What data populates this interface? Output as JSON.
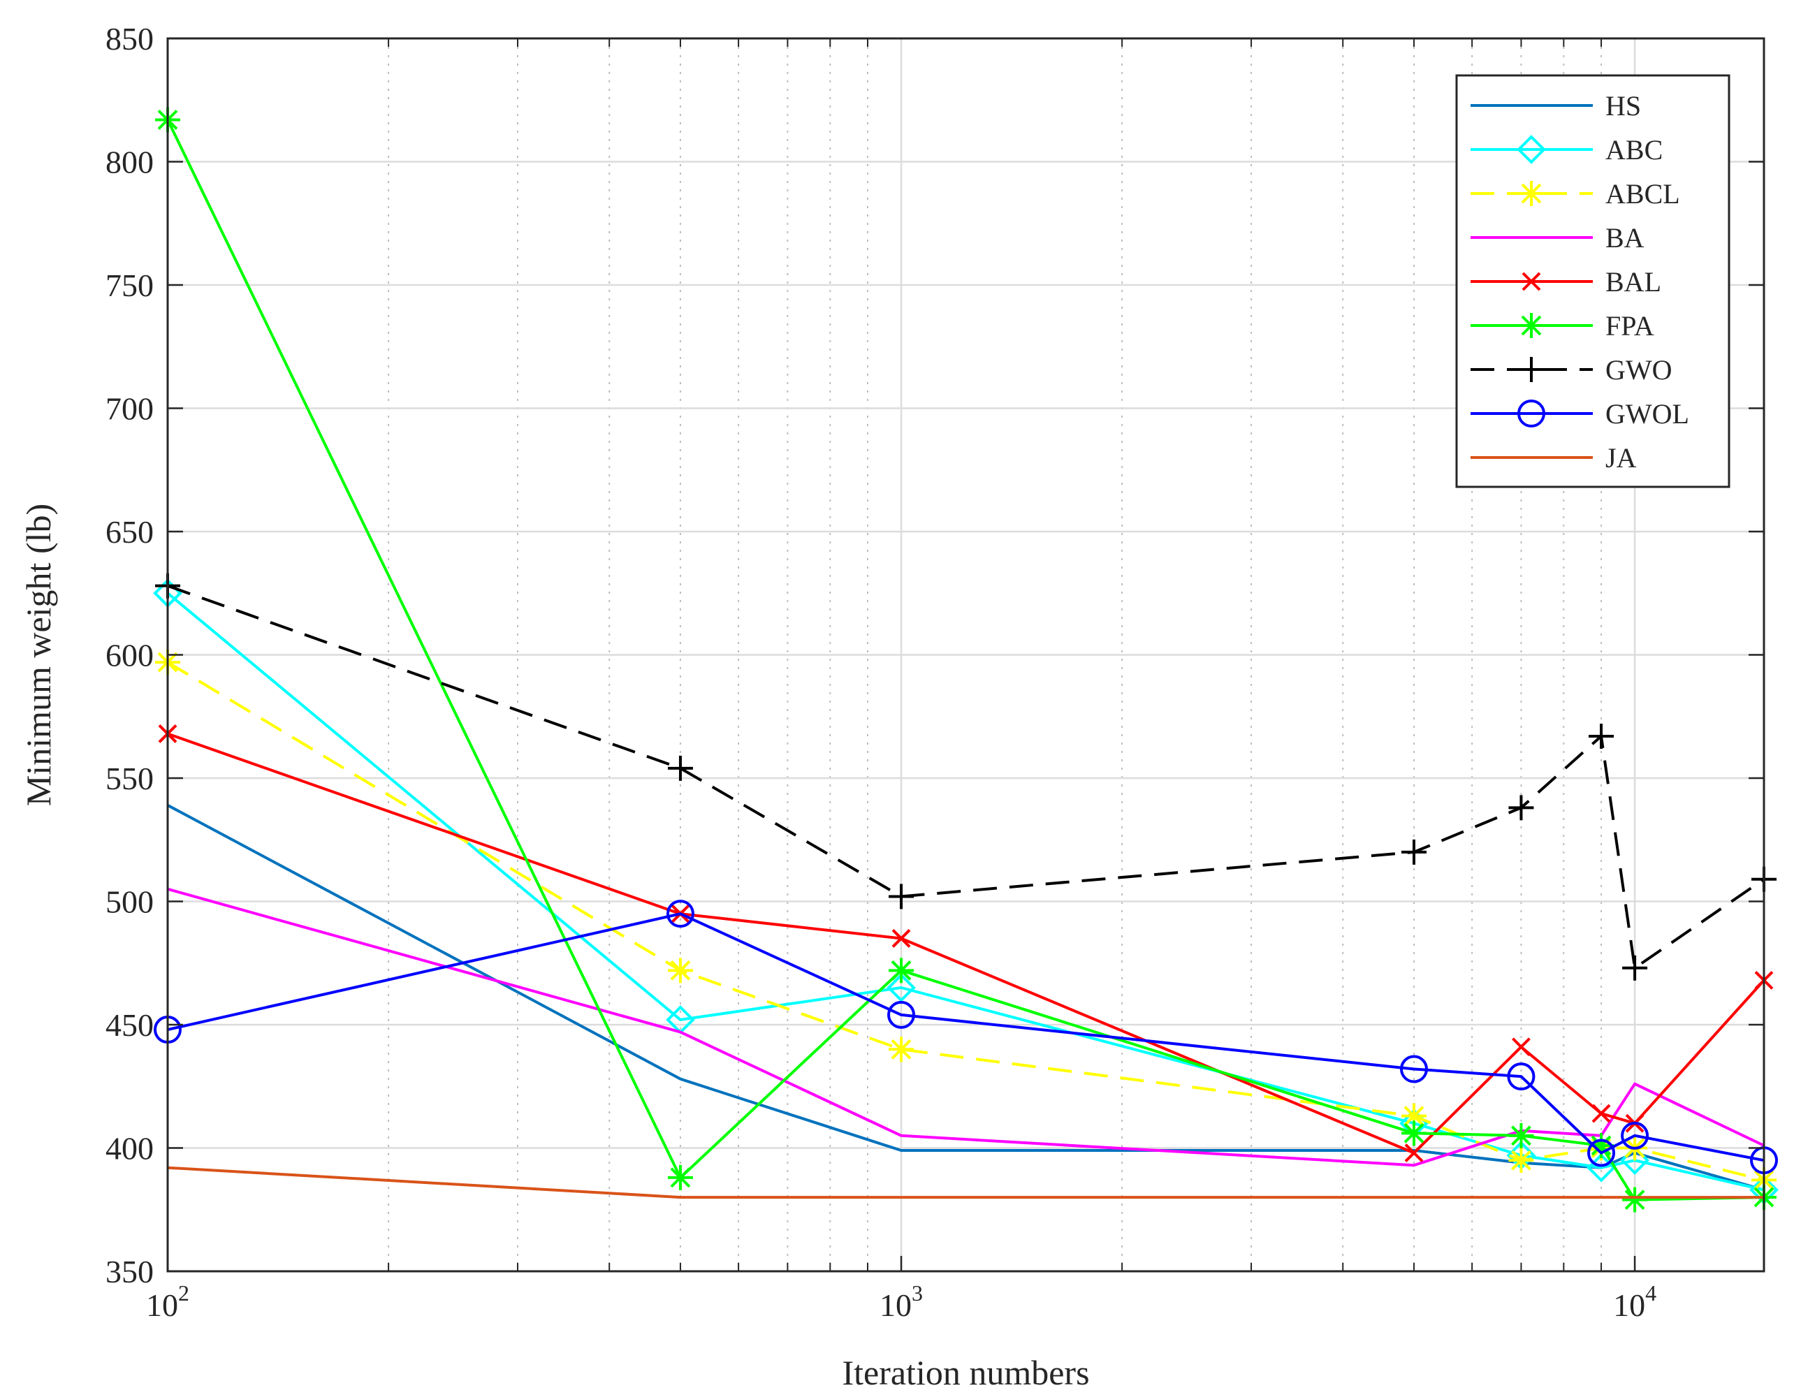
{
  "chart_data": {
    "type": "line",
    "title": "",
    "xlabel": "Iteration numbers",
    "ylabel": "Minimum weight (lb)",
    "x_scale": "log",
    "xlim": [
      100,
      15000
    ],
    "ylim": [
      350,
      850
    ],
    "x": [
      100,
      500,
      1000,
      5000,
      7000,
      9000,
      10000,
      15000
    ],
    "x_tick_labels": [
      {
        "base": "10",
        "exp": "2",
        "value": 100
      },
      {
        "base": "10",
        "exp": "3",
        "value": 1000
      },
      {
        "base": "10",
        "exp": "4",
        "value": 10000
      }
    ],
    "y_ticks": [
      350,
      400,
      450,
      500,
      550,
      600,
      650,
      700,
      750,
      800,
      850
    ],
    "y_tick_labels": [
      "350",
      "400",
      "450",
      "500",
      "550",
      "600",
      "650",
      "700",
      "750",
      "800",
      "850"
    ],
    "grid": true,
    "minor_grid": true,
    "legend_position": "top-right",
    "series": [
      {
        "name": "HS",
        "color": "#0072BD",
        "dash": "solid",
        "marker": "none",
        "values": [
          539,
          428,
          399,
          399,
          394,
          392,
          398,
          383
        ]
      },
      {
        "name": "ABC",
        "color": "#00FFFF",
        "dash": "solid",
        "marker": "diamond",
        "values": [
          625,
          452,
          465,
          410,
          397,
          392,
          395,
          383
        ]
      },
      {
        "name": "ABCL",
        "color": "#FFFF00",
        "dash": "dashed",
        "marker": "asterisk",
        "values": [
          597,
          472,
          440,
          413,
          395,
          400,
          400,
          387
        ]
      },
      {
        "name": "BA",
        "color": "#FF00FF",
        "dash": "solid",
        "marker": "none",
        "values": [
          505,
          447,
          405,
          393,
          407,
          405,
          426,
          401
        ]
      },
      {
        "name": "BAL",
        "color": "#FF0000",
        "dash": "solid",
        "marker": "x",
        "values": [
          568,
          495,
          485,
          398,
          441,
          414,
          410,
          468
        ]
      },
      {
        "name": "FPA",
        "color": "#00FF00",
        "dash": "solid",
        "marker": "asterisk",
        "values": [
          817,
          388,
          472,
          406,
          405,
          401,
          379,
          380
        ]
      },
      {
        "name": "GWO",
        "color": "#000000",
        "dash": "dashed",
        "marker": "plus",
        "values": [
          628,
          554,
          502,
          520,
          538,
          567,
          473,
          509
        ]
      },
      {
        "name": "GWOL",
        "color": "#0000FF",
        "dash": "solid",
        "marker": "circle",
        "values": [
          448,
          495,
          454,
          432,
          429,
          398,
          405,
          395
        ]
      },
      {
        "name": "JA",
        "color": "#D95319",
        "dash": "solid",
        "marker": "none",
        "values": [
          392,
          380,
          380,
          380,
          380,
          380,
          380,
          380
        ]
      }
    ]
  }
}
